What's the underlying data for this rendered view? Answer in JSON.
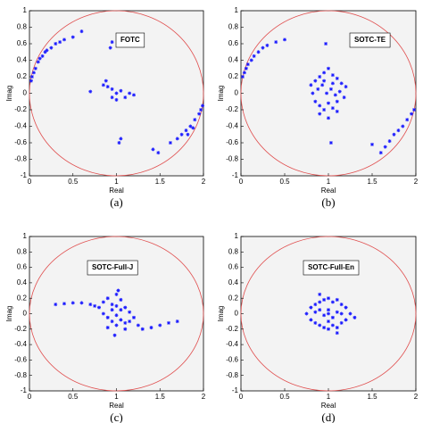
{
  "chart_data": [
    {
      "type": "scatter",
      "title": "FOTC",
      "caption": "(a)",
      "xlabel": "Real",
      "ylabel": "Imag",
      "color": "#1a1aff",
      "xlim": [
        0,
        2
      ],
      "ylim": [
        -1,
        1
      ],
      "xticks": [
        0,
        0.5,
        1,
        1.5,
        2
      ],
      "yticks": [
        -1,
        -0.8,
        -0.6,
        -0.4,
        -0.2,
        0,
        0.2,
        0.4,
        0.6,
        0.8,
        1
      ],
      "x": [
        0.02,
        0.03,
        0.05,
        0.07,
        0.1,
        0.12,
        0.15,
        0.18,
        0.2,
        0.25,
        0.3,
        0.35,
        0.4,
        0.5,
        0.6,
        0.95,
        0.93,
        0.7,
        0.85,
        0.88,
        0.9,
        0.95,
        1.0,
        1.05,
        1.1,
        1.15,
        1.2,
        1.0,
        0.95,
        1.05,
        1.03,
        1.42,
        1.48,
        1.62,
        1.7,
        1.75,
        1.8,
        1.85,
        1.9,
        1.95,
        1.97,
        1.99,
        1.82,
        1.88
      ],
      "values": [
        0.15,
        0.2,
        0.25,
        0.3,
        0.38,
        0.42,
        0.45,
        0.5,
        0.52,
        0.55,
        0.6,
        0.62,
        0.65,
        0.68,
        0.75,
        0.62,
        0.55,
        0.02,
        0.1,
        0.15,
        0.08,
        0.05,
        0.0,
        0.03,
        -0.05,
        0.0,
        -0.02,
        -0.08,
        -0.05,
        -0.55,
        -0.6,
        -0.68,
        -0.72,
        -0.6,
        -0.55,
        -0.5,
        -0.45,
        -0.4,
        -0.32,
        -0.25,
        -0.2,
        -0.15,
        -0.5,
        -0.42
      ]
    },
    {
      "type": "scatter",
      "title": "SOTC-TE",
      "caption": "(b)",
      "xlabel": "Real",
      "ylabel": "Imag",
      "color": "#1a1aff",
      "xlim": [
        0,
        2
      ],
      "ylim": [
        -1,
        1
      ],
      "xticks": [
        0,
        0.5,
        1,
        1.5,
        2
      ],
      "yticks": [
        -1,
        -0.8,
        -0.6,
        -0.4,
        -0.2,
        0,
        0.2,
        0.4,
        0.6,
        0.8,
        1
      ],
      "x": [
        0.02,
        0.04,
        0.06,
        0.08,
        0.12,
        0.15,
        0.2,
        0.25,
        0.3,
        0.4,
        0.5,
        0.97,
        0.8,
        0.85,
        0.9,
        0.95,
        1.0,
        1.05,
        1.1,
        1.15,
        1.2,
        0.82,
        0.88,
        0.93,
        0.98,
        1.03,
        1.08,
        1.13,
        1.18,
        0.85,
        0.9,
        0.95,
        1.0,
        1.05,
        1.1,
        0.9,
        1.0,
        1.1,
        0.95,
        1.05,
        1.03,
        1.5,
        1.6,
        1.65,
        1.7,
        1.75,
        1.8,
        1.85,
        1.9,
        1.95,
        1.98
      ],
      "values": [
        0.2,
        0.25,
        0.3,
        0.35,
        0.4,
        0.45,
        0.5,
        0.55,
        0.58,
        0.62,
        0.65,
        0.6,
        0.1,
        0.15,
        0.2,
        0.25,
        0.3,
        0.22,
        0.18,
        0.12,
        0.08,
        0.0,
        0.05,
        0.1,
        0.0,
        0.05,
        -0.02,
        0.02,
        -0.05,
        -0.1,
        -0.15,
        -0.2,
        -0.12,
        -0.18,
        -0.1,
        -0.25,
        -0.3,
        -0.22,
        0.15,
        0.12,
        -0.6,
        -0.62,
        -0.72,
        -0.65,
        -0.58,
        -0.5,
        -0.45,
        -0.4,
        -0.32,
        -0.25,
        -0.2
      ]
    },
    {
      "type": "scatter",
      "title": "SOTC-Full-J",
      "caption": "(c)",
      "xlabel": "Real",
      "ylabel": "Imag",
      "color": "#1a1aff",
      "xlim": [
        0,
        2
      ],
      "ylim": [
        -1,
        1
      ],
      "xticks": [
        0,
        0.5,
        1,
        1.5,
        2
      ],
      "yticks": [
        -1,
        -0.8,
        -0.6,
        -0.4,
        -0.2,
        0,
        0.2,
        0.4,
        0.6,
        0.8,
        1
      ],
      "x": [
        0.3,
        0.4,
        0.5,
        0.6,
        0.7,
        0.75,
        0.8,
        0.85,
        0.9,
        0.95,
        1.0,
        1.05,
        1.1,
        1.15,
        1.2,
        0.85,
        0.9,
        0.95,
        1.0,
        1.05,
        1.1,
        1.15,
        0.9,
        1.0,
        1.1,
        0.95,
        1.05,
        1.0,
        1.25,
        1.3,
        1.4,
        1.5,
        1.6,
        1.7,
        0.98,
        1.02
      ],
      "values": [
        0.12,
        0.13,
        0.14,
        0.14,
        0.12,
        0.1,
        0.08,
        0.15,
        0.2,
        0.12,
        0.1,
        0.05,
        0.08,
        0.02,
        -0.05,
        0.0,
        -0.05,
        -0.1,
        -0.02,
        -0.08,
        -0.12,
        -0.1,
        -0.18,
        -0.15,
        -0.2,
        0.05,
        0.18,
        0.25,
        -0.15,
        -0.2,
        -0.18,
        -0.15,
        -0.12,
        -0.1,
        -0.28,
        0.3
      ]
    },
    {
      "type": "scatter",
      "title": "SOTC-Full-En",
      "caption": "(d)",
      "xlabel": "Real",
      "ylabel": "Imag",
      "color": "#1a1aff",
      "xlim": [
        0,
        2
      ],
      "ylim": [
        -1,
        1
      ],
      "xticks": [
        0,
        0.5,
        1,
        1.5,
        2
      ],
      "yticks": [
        -1,
        -0.8,
        -0.6,
        -0.4,
        -0.2,
        0,
        0.2,
        0.4,
        0.6,
        0.8,
        1
      ],
      "x": [
        0.75,
        0.8,
        0.85,
        0.9,
        0.95,
        1.0,
        1.05,
        1.1,
        1.15,
        1.2,
        1.25,
        1.3,
        0.8,
        0.85,
        0.9,
        0.95,
        1.0,
        1.05,
        1.1,
        1.15,
        1.2,
        0.85,
        0.9,
        1.0,
        1.1,
        1.15,
        0.95,
        1.05,
        1.0,
        0.9,
        1.1,
        1.0
      ],
      "values": [
        0.0,
        0.08,
        0.12,
        0.15,
        0.18,
        0.2,
        0.15,
        0.18,
        0.12,
        0.08,
        0.0,
        -0.05,
        -0.08,
        -0.12,
        -0.15,
        -0.18,
        -0.2,
        -0.15,
        -0.18,
        -0.12,
        -0.08,
        0.02,
        0.05,
        0.05,
        0.02,
        0.0,
        -0.02,
        -0.05,
        -0.1,
        0.25,
        -0.25,
        0.0
      ]
    }
  ]
}
